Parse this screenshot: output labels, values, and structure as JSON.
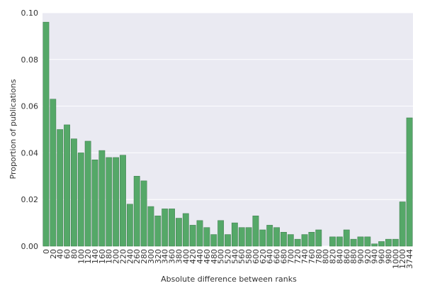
{
  "chart_data": {
    "type": "bar",
    "x_label": "Absolute difference between ranks",
    "y_label": "Proportion of publications",
    "categories": [
      "0",
      "20",
      "40",
      "60",
      "80",
      "100",
      "120",
      "140",
      "160",
      "180",
      "200",
      "220",
      "240",
      "260",
      "280",
      "300",
      "320",
      "340",
      "360",
      "380",
      "400",
      "420",
      "440",
      "460",
      "480",
      "500",
      "520",
      "540",
      "560",
      "580",
      "600",
      "620",
      "640",
      "660",
      "680",
      "700",
      "720",
      "740",
      "760",
      "780",
      "800",
      "820",
      "840",
      "860",
      "880",
      "900",
      "920",
      "940",
      "960",
      "980",
      "1000",
      "1200",
      "3744"
    ],
    "values": [
      0.096,
      0.063,
      0.05,
      0.052,
      0.046,
      0.04,
      0.045,
      0.037,
      0.041,
      0.038,
      0.038,
      0.039,
      0.018,
      0.03,
      0.028,
      0.017,
      0.013,
      0.016,
      0.016,
      0.012,
      0.014,
      0.009,
      0.011,
      0.008,
      0.005,
      0.011,
      0.005,
      0.01,
      0.008,
      0.008,
      0.013,
      0.007,
      0.009,
      0.008,
      0.006,
      0.005,
      0.003,
      0.005,
      0.006,
      0.007,
      0,
      0.004,
      0.004,
      0.007,
      0.003,
      0.004,
      0.004,
      0.001,
      0.002,
      0.003,
      0.003,
      0.019,
      0.055
    ],
    "color": "#55a868",
    "ylim": [
      0,
      0.1
    ],
    "yticks": [
      {
        "value": 0,
        "label": "0.00"
      },
      {
        "value": 0.02,
        "label": "0.02"
      },
      {
        "value": 0.04,
        "label": "0.04"
      },
      {
        "value": 0.06,
        "label": "0.06"
      },
      {
        "value": 0.08,
        "label": "0.08"
      },
      {
        "value": 0.1,
        "label": "0.10"
      }
    ],
    "grid": true
  }
}
